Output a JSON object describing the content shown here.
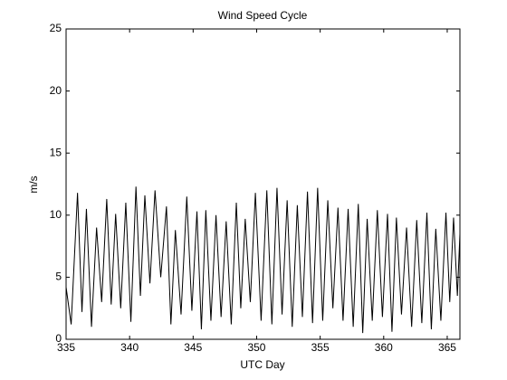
{
  "chart_data": {
    "type": "line",
    "title": "Wind Speed Cycle",
    "xlabel": "UTC Day",
    "ylabel": "m/s",
    "xlim": [
      335,
      366
    ],
    "xticks": [
      335,
      340,
      345,
      350,
      355,
      360,
      365
    ],
    "ylim": [
      0,
      25
    ],
    "yticks": [
      0,
      5,
      10,
      15,
      20,
      25
    ],
    "grid": false,
    "series": [
      {
        "color": "#000000",
        "x": [
          335.0,
          335.4,
          335.9,
          336.25,
          336.6,
          337.0,
          337.4,
          337.8,
          338.2,
          338.55,
          338.9,
          339.3,
          339.7,
          340.1,
          340.5,
          340.85,
          341.2,
          341.6,
          342.0,
          342.45,
          342.9,
          343.25,
          343.6,
          344.05,
          344.5,
          344.9,
          345.3,
          345.65,
          346.0,
          346.4,
          346.8,
          347.2,
          347.6,
          348.0,
          348.4,
          348.75,
          349.1,
          349.5,
          349.9,
          350.35,
          350.8,
          351.2,
          351.6,
          352.0,
          352.4,
          352.8,
          353.2,
          353.6,
          354.0,
          354.4,
          354.8,
          355.2,
          355.6,
          356.0,
          356.4,
          356.8,
          357.2,
          357.6,
          358.0,
          358.35,
          358.7,
          359.1,
          359.5,
          359.9,
          360.3,
          360.65,
          361.0,
          361.4,
          361.8,
          362.2,
          362.6,
          363.0,
          363.4,
          363.75,
          364.1,
          364.5,
          364.9,
          365.2,
          365.5,
          365.8,
          366.0
        ],
        "values": [
          4.2,
          1.2,
          11.8,
          2.2,
          10.5,
          1.0,
          9.0,
          3.0,
          11.3,
          2.8,
          10.1,
          2.5,
          11.0,
          1.4,
          12.3,
          3.5,
          11.6,
          4.5,
          12.0,
          5.0,
          10.7,
          1.2,
          8.8,
          2.0,
          11.5,
          2.3,
          10.3,
          0.8,
          10.4,
          1.5,
          10.0,
          1.8,
          9.5,
          1.2,
          11.0,
          2.5,
          9.7,
          3.0,
          11.8,
          1.5,
          12.0,
          1.2,
          12.2,
          2.0,
          11.2,
          1.0,
          10.8,
          1.8,
          11.9,
          1.3,
          12.2,
          1.5,
          11.2,
          2.5,
          10.6,
          1.5,
          10.5,
          1.0,
          10.9,
          0.5,
          9.7,
          1.5,
          10.4,
          1.8,
          10.1,
          0.6,
          9.8,
          2.0,
          9.0,
          1.0,
          9.6,
          1.3,
          10.2,
          0.8,
          8.9,
          1.5,
          10.2,
          3.0,
          9.8,
          3.5,
          8.5
        ]
      }
    ]
  }
}
